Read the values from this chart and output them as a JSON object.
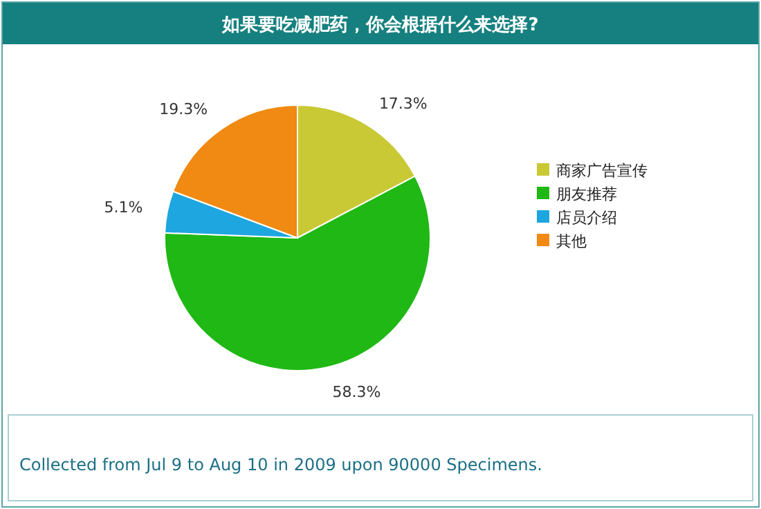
{
  "chart_data": {
    "type": "pie",
    "title": "如果要吃减肥药，你会根据什么来选择?",
    "categories": [
      "商家广告宣传",
      "朋友推荐",
      "店员介绍",
      "其他"
    ],
    "values": [
      17.3,
      58.3,
      5.1,
      19.3
    ],
    "value_labels": [
      "17.3%",
      "58.3%",
      "5.1%",
      "19.3%"
    ],
    "colors": [
      "#c9c935",
      "#1fb814",
      "#1ea6e0",
      "#f08a12"
    ],
    "legend": "right",
    "annotations": [
      "Collected from Jul 9 to Aug 10 in 2009 upon 90000 Specimens."
    ]
  }
}
